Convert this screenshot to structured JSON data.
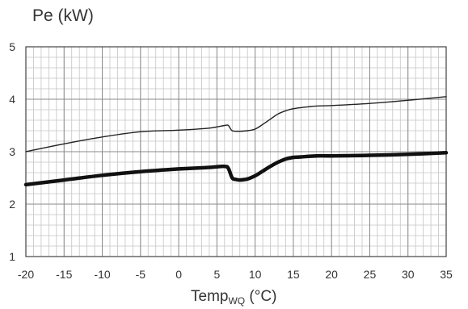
{
  "chart_data": {
    "type": "line",
    "ylabel": "Pe (kW)",
    "xlabel": {
      "main": "Temp",
      "sub": "WQ",
      "unit": " (°C)"
    },
    "xlim": [
      -20,
      35
    ],
    "ylim": [
      1,
      5
    ],
    "x_ticks": [
      -20,
      -15,
      -10,
      -5,
      0,
      5,
      10,
      15,
      20,
      25,
      30,
      35
    ],
    "y_ticks": [
      1,
      2,
      3,
      4,
      5
    ],
    "grid": true,
    "minor_grid_per_major_x": 5,
    "minor_grid_per_major_y": 5,
    "legend": "none",
    "series": [
      {
        "style": "thin",
        "color": "#222222",
        "x": [
          -20,
          -15,
          -10,
          -5,
          0,
          4,
          6,
          6.5,
          7,
          8,
          9,
          10,
          11,
          12,
          13,
          14,
          15,
          16,
          18,
          20,
          25,
          30,
          35
        ],
        "y": [
          3.0,
          3.15,
          3.28,
          3.38,
          3.41,
          3.45,
          3.5,
          3.5,
          3.4,
          3.39,
          3.4,
          3.43,
          3.52,
          3.62,
          3.72,
          3.78,
          3.82,
          3.84,
          3.87,
          3.88,
          3.92,
          3.98,
          4.05
        ]
      },
      {
        "style": "thick",
        "color": "#111111",
        "x": [
          -20,
          -15,
          -10,
          -5,
          0,
          4,
          6,
          6.5,
          7,
          7.5,
          8,
          9,
          10,
          11,
          12,
          13,
          14,
          15,
          16,
          18,
          20,
          25,
          30,
          35
        ],
        "y": [
          2.37,
          2.46,
          2.55,
          2.62,
          2.67,
          2.7,
          2.72,
          2.68,
          2.5,
          2.47,
          2.46,
          2.48,
          2.54,
          2.63,
          2.72,
          2.8,
          2.86,
          2.89,
          2.9,
          2.92,
          2.92,
          2.93,
          2.95,
          2.98
        ]
      }
    ]
  }
}
